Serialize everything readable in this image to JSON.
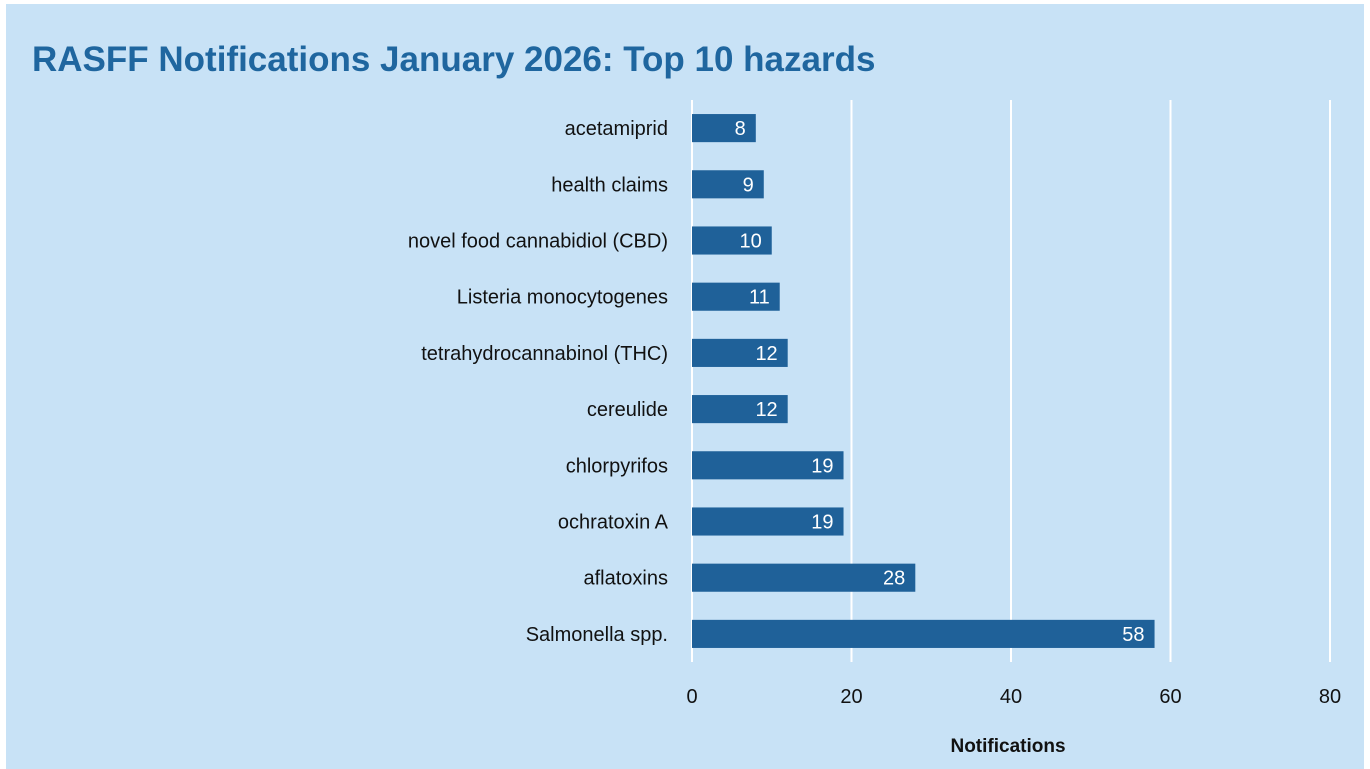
{
  "chart_data": {
    "type": "bar",
    "orientation": "horizontal",
    "title": "RASFF Notifications January 2026: Top 10 hazards",
    "xlabel": "Notifications",
    "ylabel": "",
    "categories": [
      "acetamiprid",
      "health claims",
      "novel food cannabidiol (CBD)",
      "Listeria monocytogenes",
      "tetrahydrocannabinol (THC)",
      "cereulide",
      "chlorpyrifos",
      "ochratoxin A",
      "aflatoxins",
      "Salmonella spp."
    ],
    "values": [
      8,
      9,
      10,
      11,
      12,
      12,
      19,
      19,
      28,
      58
    ],
    "xlim": [
      0,
      80
    ],
    "xticks": [
      0,
      20,
      40,
      60,
      80
    ],
    "grid": "vertical",
    "legend": "none",
    "data_labels": true,
    "colors": {
      "bar": "#1f6199",
      "background": "#c8e2f6",
      "title": "#1f669f",
      "grid": "#ffffff",
      "bar_label": "#ffffff"
    }
  }
}
